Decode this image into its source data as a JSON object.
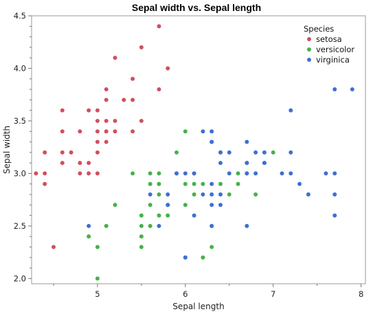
{
  "chart_data": {
    "type": "scatter",
    "title": "Sepal width vs. Sepal length",
    "xlabel": "Sepal length",
    "ylabel": "Sepal width",
    "xlim": [
      4.25,
      8.05
    ],
    "ylim": [
      1.95,
      4.5
    ],
    "xticks": [
      5,
      6,
      7,
      8
    ],
    "xtick_labels": [
      "5",
      "6",
      "7",
      "8"
    ],
    "yticks": [
      2.0,
      2.5,
      3.0,
      3.5,
      4.0,
      4.5
    ],
    "ytick_labels": [
      "2.0",
      "2.5",
      "3.0",
      "3.5",
      "4.0",
      "4.5"
    ],
    "grid": false,
    "legend": {
      "title": "Species",
      "placement": "top-right"
    },
    "series": [
      {
        "name": "setosa",
        "color": "#d0505f",
        "points": [
          [
            4.3,
            3.0
          ],
          [
            4.4,
            2.9
          ],
          [
            4.4,
            3.0
          ],
          [
            4.4,
            3.2
          ],
          [
            4.5,
            2.3
          ],
          [
            4.6,
            3.1
          ],
          [
            4.6,
            3.2
          ],
          [
            4.6,
            3.4
          ],
          [
            4.6,
            3.6
          ],
          [
            4.7,
            3.2
          ],
          [
            4.8,
            3.0
          ],
          [
            4.8,
            3.1
          ],
          [
            4.8,
            3.4
          ],
          [
            4.9,
            3.0
          ],
          [
            4.9,
            3.1
          ],
          [
            4.9,
            3.6
          ],
          [
            5.0,
            3.0
          ],
          [
            5.0,
            3.2
          ],
          [
            5.0,
            3.3
          ],
          [
            5.0,
            3.4
          ],
          [
            5.0,
            3.5
          ],
          [
            5.0,
            3.6
          ],
          [
            5.1,
            3.3
          ],
          [
            5.1,
            3.4
          ],
          [
            5.1,
            3.5
          ],
          [
            5.1,
            3.7
          ],
          [
            5.1,
            3.8
          ],
          [
            5.2,
            3.4
          ],
          [
            5.2,
            3.5
          ],
          [
            5.2,
            4.1
          ],
          [
            5.3,
            3.7
          ],
          [
            5.4,
            3.4
          ],
          [
            5.4,
            3.7
          ],
          [
            5.4,
            3.9
          ],
          [
            5.5,
            3.5
          ],
          [
            5.5,
            4.2
          ],
          [
            5.7,
            3.8
          ],
          [
            5.7,
            4.4
          ],
          [
            5.8,
            4.0
          ]
        ]
      },
      {
        "name": "versicolor",
        "color": "#45b24a",
        "points": [
          [
            4.9,
            2.4
          ],
          [
            5.0,
            2.0
          ],
          [
            5.0,
            2.3
          ],
          [
            5.1,
            2.5
          ],
          [
            5.2,
            2.7
          ],
          [
            5.4,
            3.0
          ],
          [
            5.5,
            2.3
          ],
          [
            5.5,
            2.4
          ],
          [
            5.5,
            2.5
          ],
          [
            5.5,
            2.6
          ],
          [
            5.6,
            2.5
          ],
          [
            5.6,
            2.7
          ],
          [
            5.6,
            2.9
          ],
          [
            5.6,
            3.0
          ],
          [
            5.7,
            2.6
          ],
          [
            5.7,
            2.8
          ],
          [
            5.7,
            2.9
          ],
          [
            5.7,
            3.0
          ],
          [
            5.8,
            2.6
          ],
          [
            5.8,
            2.7
          ],
          [
            5.9,
            3.0
          ],
          [
            5.9,
            3.2
          ],
          [
            6.0,
            2.2
          ],
          [
            6.0,
            2.7
          ],
          [
            6.0,
            2.9
          ],
          [
            6.0,
            3.4
          ],
          [
            6.1,
            2.8
          ],
          [
            6.1,
            2.9
          ],
          [
            6.1,
            3.0
          ],
          [
            6.2,
            2.2
          ],
          [
            6.2,
            2.9
          ],
          [
            6.3,
            2.3
          ],
          [
            6.3,
            2.5
          ],
          [
            6.3,
            3.3
          ],
          [
            6.4,
            2.9
          ],
          [
            6.4,
            3.2
          ],
          [
            6.5,
            2.8
          ],
          [
            6.6,
            2.9
          ],
          [
            6.6,
            3.0
          ],
          [
            6.7,
            3.0
          ],
          [
            6.7,
            3.1
          ],
          [
            6.8,
            2.8
          ],
          [
            6.9,
            3.1
          ],
          [
            7.0,
            3.2
          ]
        ]
      },
      {
        "name": "virginica",
        "color": "#3f6fd4",
        "points": [
          [
            4.9,
            2.5
          ],
          [
            5.6,
            2.8
          ],
          [
            5.7,
            2.5
          ],
          [
            5.8,
            2.7
          ],
          [
            5.8,
            2.8
          ],
          [
            5.9,
            3.0
          ],
          [
            6.0,
            2.2
          ],
          [
            6.0,
            3.0
          ],
          [
            6.1,
            2.6
          ],
          [
            6.1,
            3.0
          ],
          [
            6.2,
            2.8
          ],
          [
            6.2,
            3.4
          ],
          [
            6.3,
            2.5
          ],
          [
            6.3,
            2.7
          ],
          [
            6.3,
            2.8
          ],
          [
            6.3,
            2.9
          ],
          [
            6.3,
            3.3
          ],
          [
            6.3,
            3.4
          ],
          [
            6.4,
            2.7
          ],
          [
            6.4,
            2.8
          ],
          [
            6.4,
            3.1
          ],
          [
            6.4,
            3.2
          ],
          [
            6.5,
            3.0
          ],
          [
            6.5,
            3.2
          ],
          [
            6.7,
            2.5
          ],
          [
            6.7,
            3.0
          ],
          [
            6.7,
            3.1
          ],
          [
            6.7,
            3.3
          ],
          [
            6.8,
            3.0
          ],
          [
            6.8,
            3.2
          ],
          [
            6.9,
            3.1
          ],
          [
            6.9,
            3.2
          ],
          [
            7.1,
            3.0
          ],
          [
            7.2,
            3.0
          ],
          [
            7.2,
            3.2
          ],
          [
            7.2,
            3.6
          ],
          [
            7.3,
            2.9
          ],
          [
            7.4,
            2.8
          ],
          [
            7.6,
            3.0
          ],
          [
            7.7,
            2.6
          ],
          [
            7.7,
            2.8
          ],
          [
            7.7,
            3.0
          ],
          [
            7.7,
            3.8
          ],
          [
            7.9,
            3.8
          ]
        ]
      }
    ]
  }
}
